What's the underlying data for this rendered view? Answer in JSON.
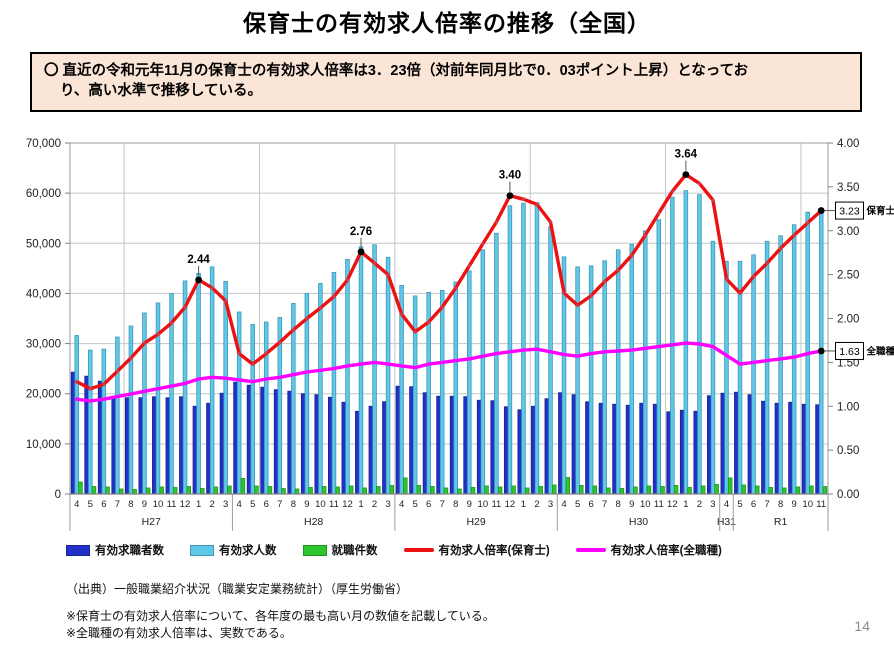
{
  "page": {
    "title": "保育士の有効求人倍率の推移（全国）",
    "page_number": "14"
  },
  "callout": {
    "bullet": "〇",
    "line1": "直近の令和元年11月の保育士の有効求人倍率は3．23倍（対前年同月比で0．03ポイント上昇）となってお",
    "line2": "り、高い水準で推移している。"
  },
  "source": "（出典）一般職業紹介状況（職業安定業務統計）（厚生労働省）",
  "notes": [
    "※保育士の有効求人倍率について、各年度の最も高い月の数値を記載している。",
    "※全職種の有効求人倍率は、実数である。"
  ],
  "colors": {
    "seekers_bar": "#2231c8",
    "seekers_border": "#1a2590",
    "openings_bar": "#5fc8e8",
    "openings_border": "#3e97b5",
    "placements_bar": "#2ec62e",
    "placements_border": "#1e941e",
    "ratio_hoikushi": "#ed1111",
    "ratio_all": "#ff00ff",
    "grid": "#c6c6c6",
    "plot_border": "#9b9b9b",
    "axis_line": "#808080",
    "callout_bg": "#fbe5d6",
    "text": "#1a1a1a"
  },
  "legend": {
    "items": [
      {
        "label": "有効求職者数",
        "type": "bar",
        "color": "#2231c8",
        "border": "#1a2590"
      },
      {
        "label": "有効求人数",
        "type": "bar",
        "color": "#5fc8e8",
        "border": "#3e97b5"
      },
      {
        "label": "就職件数",
        "type": "bar",
        "color": "#2ec62e",
        "border": "#1e941e"
      },
      {
        "label": "有効求人倍率(保育士)",
        "type": "line",
        "color": "#ed1111"
      },
      {
        "label": "有効求人倍率(全職種)",
        "type": "line",
        "color": "#ff00ff"
      }
    ]
  },
  "chart_data": {
    "type": "combo_bar_line",
    "left_axis": {
      "min": 0,
      "max": 70000,
      "step": 10000
    },
    "right_axis": {
      "min": 0,
      "max": 4.0,
      "step": 0.5
    },
    "grid": "horizontal_major_plus_10month_vertical",
    "legend_position": "bottom",
    "sections": [
      {
        "label": "H27",
        "months": [
          4,
          5,
          6,
          7,
          8,
          9,
          10,
          11,
          12,
          1,
          2,
          3
        ]
      },
      {
        "label": "H28",
        "months": [
          4,
          5,
          6,
          7,
          8,
          9,
          10,
          11,
          12,
          1,
          2,
          3
        ]
      },
      {
        "label": "H29",
        "months": [
          4,
          5,
          6,
          7,
          8,
          9,
          10,
          11,
          12,
          1,
          2,
          3
        ]
      },
      {
        "label": "H30",
        "months": [
          4,
          5,
          6,
          7,
          8,
          9,
          10,
          11,
          12,
          1,
          2,
          3
        ]
      },
      {
        "label": "H31",
        "months": [
          4
        ]
      },
      {
        "label": "R1",
        "months": [
          5,
          6,
          7,
          8,
          9,
          10,
          11
        ]
      }
    ],
    "series": [
      {
        "name": "有効求職者数",
        "type": "bar",
        "axis": "left",
        "color": "#2231c8",
        "values": [
          24300,
          23500,
          22500,
          19500,
          19200,
          19200,
          19400,
          19200,
          19400,
          17500,
          18100,
          20100,
          22300,
          21700,
          21300,
          20800,
          20500,
          20000,
          19800,
          19300,
          18300,
          16500,
          17500,
          18400,
          21500,
          21400,
          20200,
          19500,
          19500,
          19400,
          18700,
          18600,
          17400,
          16800,
          17500,
          19000,
          20200,
          19800,
          18400,
          18100,
          17900,
          17700,
          18100,
          17900,
          16400,
          16700,
          16500,
          19600,
          20100,
          20300,
          19800,
          18500,
          18100,
          18300,
          17900,
          17800
        ]
      },
      {
        "name": "有効求人数",
        "type": "bar",
        "axis": "left",
        "color": "#5fc8e8",
        "values": [
          31600,
          28700,
          28900,
          31300,
          33500,
          36100,
          38100,
          40000,
          42500,
          44000,
          45300,
          42400,
          36300,
          33800,
          34300,
          35200,
          38000,
          40000,
          42000,
          44200,
          46800,
          49300,
          49700,
          47200,
          41600,
          39500,
          40200,
          40600,
          42300,
          44500,
          48700,
          52000,
          57500,
          58000,
          58100,
          53300,
          47300,
          45300,
          45500,
          46500,
          48700,
          49800,
          52500,
          54700,
          59200,
          60500,
          59700,
          50400,
          46400,
          46400,
          47700,
          50400,
          51500,
          53700,
          56200,
          56500
        ]
      },
      {
        "name": "就職件数",
        "type": "bar",
        "axis": "left",
        "color": "#2ec62e",
        "values": [
          2400,
          1500,
          1400,
          1000,
          900,
          1200,
          1400,
          1300,
          1500,
          1100,
          1400,
          1600,
          3100,
          1600,
          1500,
          1100,
          1000,
          1300,
          1500,
          1400,
          1600,
          1200,
          1500,
          1700,
          3200,
          1700,
          1500,
          1200,
          1000,
          1300,
          1600,
          1400,
          1600,
          1200,
          1500,
          1800,
          3300,
          1700,
          1600,
          1200,
          1100,
          1400,
          1600,
          1500,
          1700,
          1300,
          1600,
          1900,
          3200,
          1800,
          1600,
          1300,
          1200,
          1400,
          1600,
          1500
        ]
      },
      {
        "name": "有効求人倍率（保育士）",
        "type": "line",
        "axis": "right",
        "color": "#ed1111",
        "values": [
          1.28,
          1.2,
          1.25,
          1.4,
          1.55,
          1.72,
          1.82,
          1.95,
          2.13,
          2.44,
          2.35,
          2.2,
          1.6,
          1.48,
          1.6,
          1.73,
          1.87,
          2.0,
          2.12,
          2.25,
          2.44,
          2.76,
          2.63,
          2.5,
          2.05,
          1.85,
          1.96,
          2.13,
          2.35,
          2.6,
          2.85,
          3.1,
          3.4,
          3.36,
          3.3,
          3.1,
          2.29,
          2.15,
          2.26,
          2.42,
          2.55,
          2.72,
          2.95,
          3.2,
          3.45,
          3.64,
          3.54,
          3.35,
          2.45,
          2.29,
          2.48,
          2.63,
          2.8,
          2.95,
          3.09,
          3.23
        ]
      },
      {
        "name": "有効求人倍率（全職種）",
        "type": "line",
        "axis": "right",
        "color": "#ff00ff",
        "values": [
          1.08,
          1.06,
          1.08,
          1.11,
          1.14,
          1.17,
          1.2,
          1.23,
          1.26,
          1.31,
          1.33,
          1.32,
          1.3,
          1.28,
          1.31,
          1.33,
          1.36,
          1.39,
          1.41,
          1.43,
          1.46,
          1.48,
          1.5,
          1.48,
          1.46,
          1.44,
          1.48,
          1.5,
          1.52,
          1.54,
          1.57,
          1.6,
          1.62,
          1.64,
          1.65,
          1.62,
          1.59,
          1.57,
          1.6,
          1.62,
          1.63,
          1.64,
          1.66,
          1.68,
          1.7,
          1.72,
          1.71,
          1.68,
          1.58,
          1.48,
          1.5,
          1.52,
          1.54,
          1.56,
          1.6,
          1.63
        ]
      }
    ],
    "annotations": [
      {
        "month_index": 9,
        "label": "2.44"
      },
      {
        "month_index": 21,
        "label": "2.76"
      },
      {
        "month_index": 32,
        "label": "3.40"
      },
      {
        "month_index": 45,
        "label": "3.64"
      }
    ],
    "end_callouts": [
      {
        "series_index": 3,
        "value_label": "3.23",
        "name": "保育士"
      },
      {
        "series_index": 4,
        "value_label": "1.63",
        "name": "全職種"
      }
    ]
  }
}
